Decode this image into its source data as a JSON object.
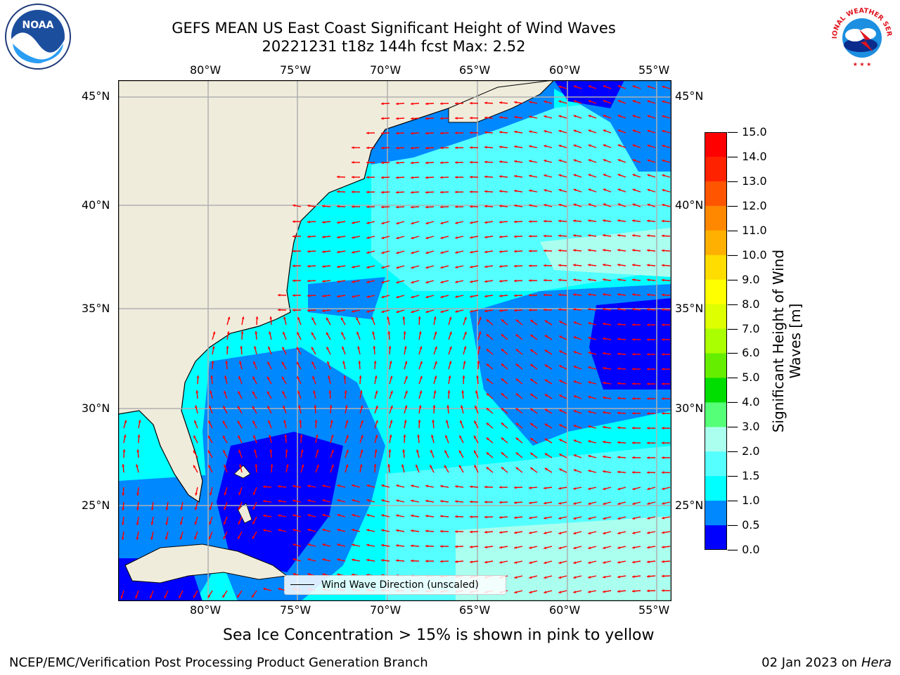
{
  "title": {
    "line1": "GEFS MEAN US East Coast Significant Height of Wind Waves",
    "line2": "20221231 t18z 144h fcst   Max: 2.52"
  },
  "logos": {
    "left": "NOAA",
    "right": "NATIONAL WEATHER SERVICE"
  },
  "map": {
    "lon_labels": [
      "80°W",
      "75°W",
      "70°W",
      "65°W",
      "60°W",
      "55°W"
    ],
    "lat_labels": [
      "45°N",
      "40°N",
      "35°N",
      "30°N",
      "25°N"
    ],
    "extent": {
      "lon": [
        -85,
        -54.3
      ],
      "lat": [
        20.5,
        45.8
      ]
    },
    "gridlines": true,
    "land_color": "#efecdc",
    "arrow_color": "#ff0000"
  },
  "legend": {
    "label": "Wind Wave Direction (unscaled)"
  },
  "colorbar": {
    "title_line1": "Significant Height of Wind",
    "title_line2": "Waves [m]",
    "ticks": [
      "15.0",
      "14.0",
      "13.0",
      "12.0",
      "11.0",
      "10.0",
      "9.0",
      "8.0",
      "7.0",
      "6.0",
      "5.0",
      "4.0",
      "3.0",
      "2.0",
      "1.5",
      "1.0",
      "0.5",
      "0.0"
    ],
    "colors_top_to_bottom": [
      "#ff0000",
      "#ff2200",
      "#ff5500",
      "#ff8800",
      "#ffb000",
      "#ffdd00",
      "#ffff00",
      "#ddff00",
      "#aaff00",
      "#66ee00",
      "#00dd00",
      "#55ff77",
      "#aaffee",
      "#55ffff",
      "#00ffff",
      "#0088ff",
      "#0000ff"
    ]
  },
  "note": "Sea Ice Concentration > 15% is shown in pink to yellow",
  "footer": {
    "left": "NCEP/EMC/Verification Post Processing Product Generation Branch",
    "date": "02 Jan 2023 on ",
    "host": "Hera"
  }
}
